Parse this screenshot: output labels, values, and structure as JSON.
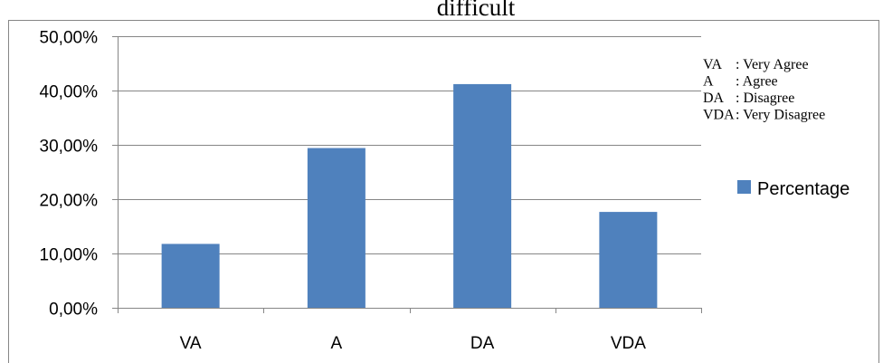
{
  "chart_data": {
    "type": "bar",
    "title": "difficult",
    "categories": [
      "VA",
      "A",
      "DA",
      "VDA"
    ],
    "series": [
      {
        "name": "Percentage",
        "values": [
          11.76,
          29.41,
          41.18,
          17.65
        ],
        "color": "#4F81BD"
      }
    ],
    "ylim": [
      0,
      50
    ],
    "yticks": [
      {
        "value": 0,
        "label": "0,00%"
      },
      {
        "value": 10,
        "label": "10,00%"
      },
      {
        "value": 20,
        "label": "20,00%"
      },
      {
        "value": 30,
        "label": "30,00%"
      },
      {
        "value": 40,
        "label": "40,00%"
      },
      {
        "value": 50,
        "label": "50,00%"
      }
    ],
    "grid": true,
    "legend_position": "right",
    "notes": [
      {
        "abbr": "VA",
        "desc": ": Very Agree"
      },
      {
        "abbr": "A",
        "desc": ": Agree"
      },
      {
        "abbr": "DA",
        "desc": ": Disagree"
      },
      {
        "abbr": "VDA",
        "desc": ": Very Disagree"
      }
    ]
  }
}
